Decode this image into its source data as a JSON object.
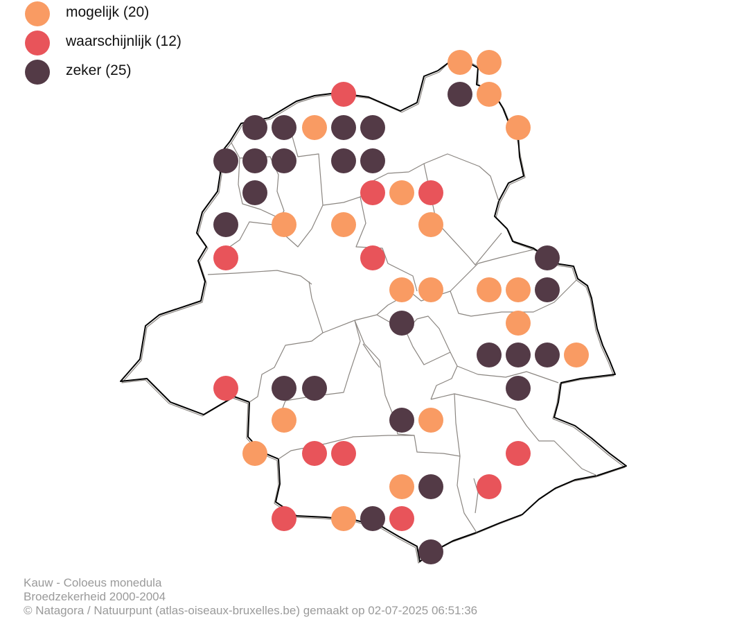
{
  "legend": {
    "items": [
      {
        "label": "mogelijk (20)",
        "color": "#f99b63"
      },
      {
        "label": "waarschijnlijk (12)",
        "color": "#e8545a"
      },
      {
        "label": "zeker (25)",
        "color": "#533a46"
      }
    ]
  },
  "caption": {
    "line1": "Kauw - Coloeus monedula",
    "line2": "Broedzekerheid 2000-2004",
    "line3": "© Natagora / Natuurpunt (atlas-oiseaux-bruxelles.be) gemaakt op 02-07-2025 06:51:36"
  },
  "map": {
    "boundary_color": "#000000",
    "municipality_line_color": "#8a8580",
    "category_colors": {
      "mogelijk": "#f99b63",
      "waarschijnlijk": "#e8545a",
      "zeker": "#533a46"
    }
  }
}
